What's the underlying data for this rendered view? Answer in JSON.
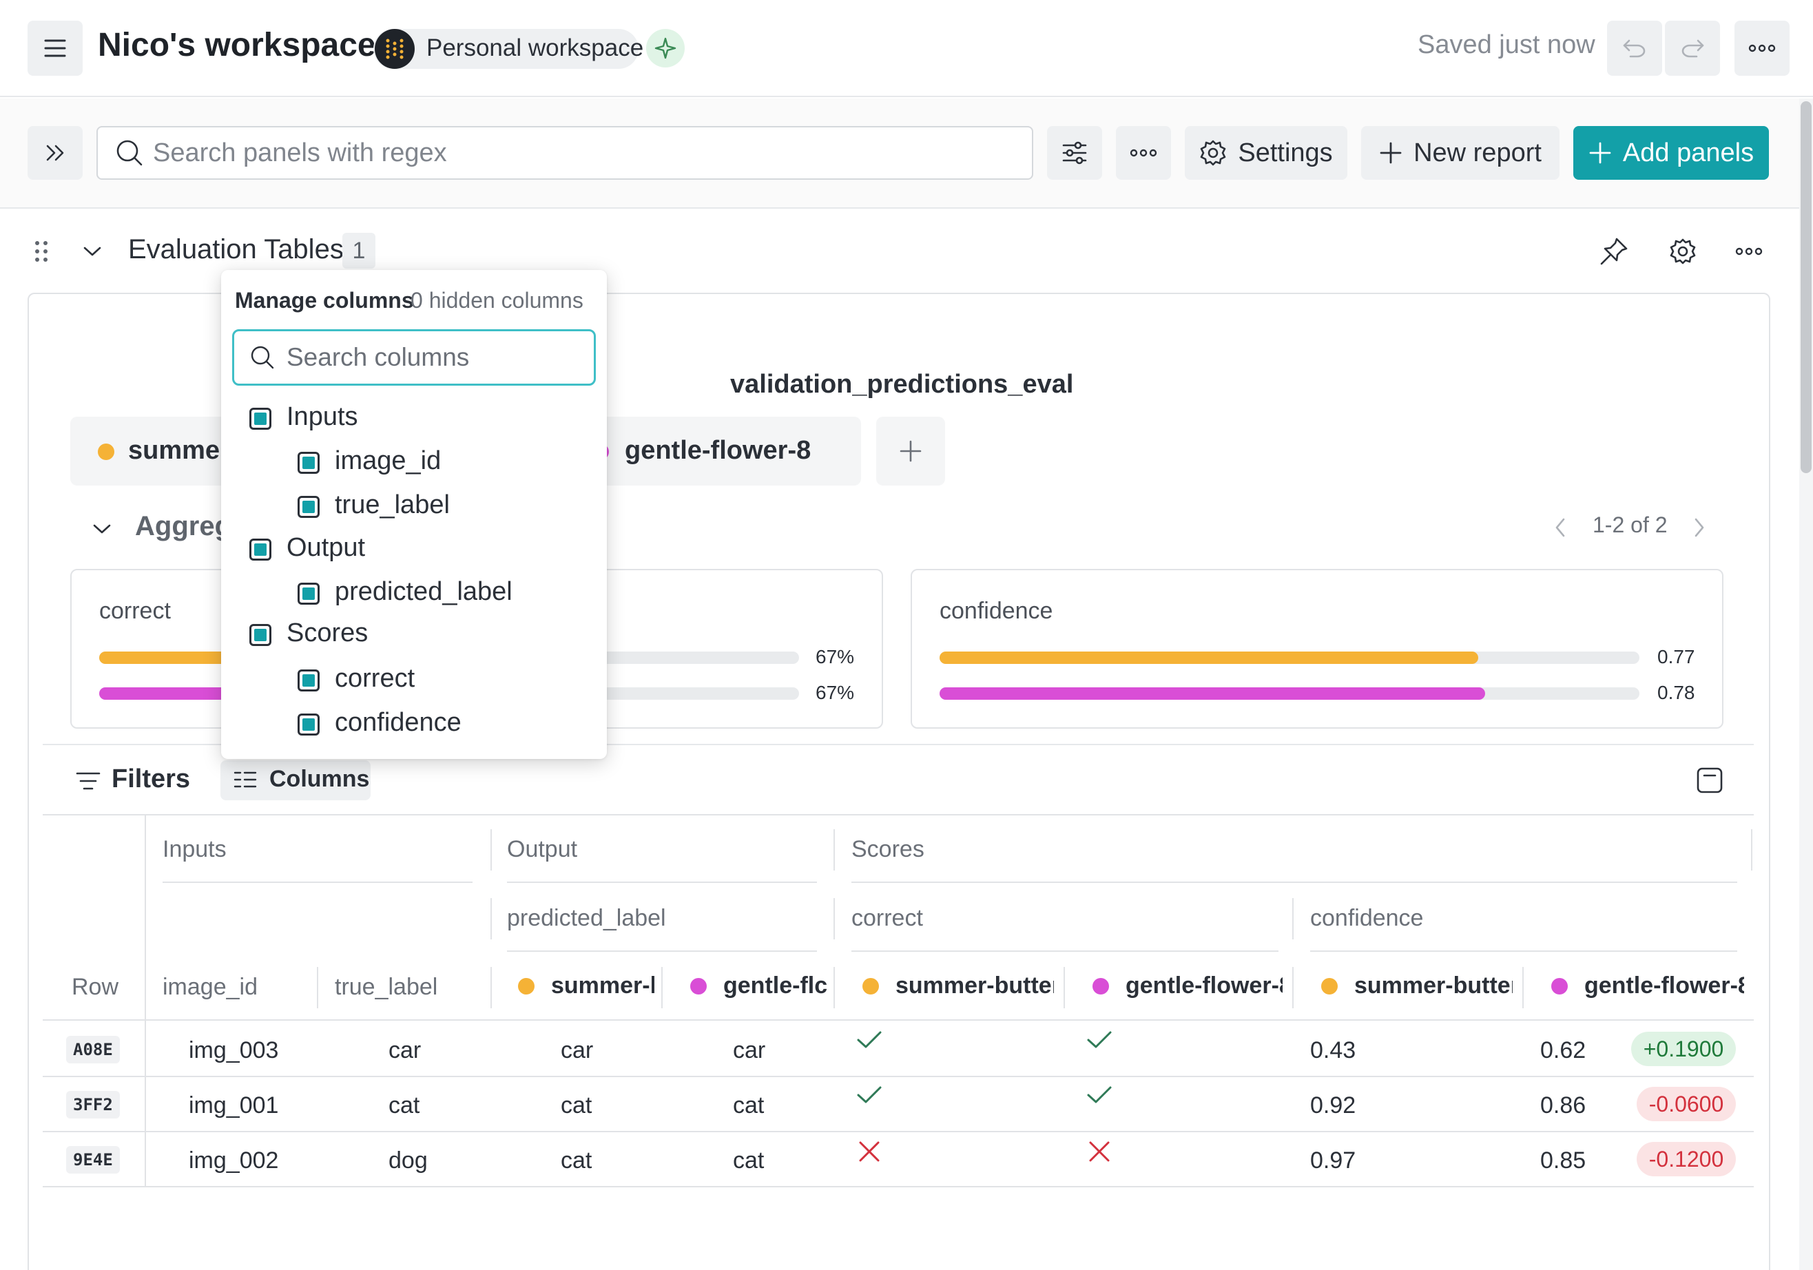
{
  "header": {
    "workspace_title": "Nico's workspace",
    "workspace_type": "Personal workspace",
    "saved_status": "Saved just now"
  },
  "toolbar": {
    "search_placeholder": "Search panels with regex",
    "settings_label": "Settings",
    "new_report_label": "New report",
    "add_panels_label": "Add panels",
    "accent_color": "#13a0a8"
  },
  "section": {
    "title": "Evaluation Tables",
    "count": "1"
  },
  "panel": {
    "title": "validation_predictions_eval",
    "runs": [
      {
        "name": "summer-butterfly",
        "color": "#f5b236",
        "visible_label": "summer"
      },
      {
        "name": "gentle-flower-8",
        "color": "#d94ed6",
        "visible_label": "gentle-flower-8"
      }
    ],
    "aggregate_label": "Aggregate",
    "pagination": "1-2 of 2",
    "cards": [
      {
        "title": "correct",
        "values": [
          {
            "run": "summer",
            "fraction": 0.67,
            "label": "67%"
          },
          {
            "run": "gentle-flower-8",
            "fraction": 0.67,
            "label": "67%"
          }
        ]
      },
      {
        "title": "confidence",
        "values": [
          {
            "run": "summer",
            "fraction": 0.77,
            "label": "0.77"
          },
          {
            "run": "gentle-flower-8",
            "fraction": 0.78,
            "label": "0.78"
          }
        ]
      }
    ],
    "filters_label": "Filters",
    "columns_label": "Columns"
  },
  "table": {
    "groups": {
      "inputs": "Inputs",
      "output": "Output",
      "scores": "Scores"
    },
    "subgroups": {
      "predicted_label": "predicted_label",
      "correct": "correct",
      "confidence": "confidence"
    },
    "columns": {
      "row": "Row",
      "image_id": "image_id",
      "true_label": "true_label",
      "pred_run1": "summer-l",
      "pred_run2": "gentle-flc",
      "correct_run1": "summer-butter",
      "correct_run2": "gentle-flower-8",
      "conf_run1": "summer-butter",
      "conf_run2": "gentle-flower-8"
    },
    "rows": [
      {
        "id": "A08E",
        "image_id": "img_003",
        "true_label": "car",
        "pred1": "car",
        "pred2": "car",
        "correct1": "check",
        "correct2": "check",
        "conf1": "0.43",
        "conf2": "0.62",
        "delta": "+0.1900",
        "delta_sign": "pos"
      },
      {
        "id": "3FF2",
        "image_id": "img_001",
        "true_label": "cat",
        "pred1": "cat",
        "pred2": "cat",
        "correct1": "check",
        "correct2": "check",
        "conf1": "0.92",
        "conf2": "0.86",
        "delta": "-0.0600",
        "delta_sign": "neg"
      },
      {
        "id": "9E4E",
        "image_id": "img_002",
        "true_label": "dog",
        "pred1": "cat",
        "pred2": "cat",
        "correct1": "cross",
        "correct2": "cross",
        "conf1": "0.97",
        "conf2": "0.85",
        "delta": "-0.1200",
        "delta_sign": "neg"
      }
    ]
  },
  "manage_columns": {
    "title": "Manage columns",
    "hidden_count": "0 hidden columns",
    "search_placeholder": "Search columns",
    "groups": [
      {
        "label": "Inputs",
        "checked": true,
        "children": [
          {
            "label": "image_id",
            "checked": true
          },
          {
            "label": "true_label",
            "checked": true
          }
        ]
      },
      {
        "label": "Output",
        "checked": true,
        "children": [
          {
            "label": "predicted_label",
            "checked": true
          }
        ]
      },
      {
        "label": "Scores",
        "checked": true,
        "children": [
          {
            "label": "correct",
            "checked": true
          },
          {
            "label": "confidence",
            "checked": true
          }
        ]
      }
    ]
  }
}
